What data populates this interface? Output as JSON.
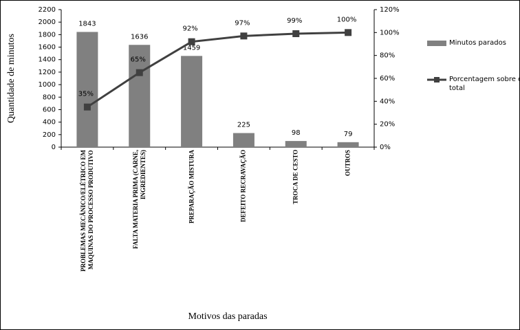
{
  "chart_data": {
    "type": "bar",
    "x_label": "Motivos das paradas",
    "y_label": "Quantidade de minutos",
    "categories": [
      "PROBLEMAS MECÂNICO/ELÉTRICO EM MAQUINAS DO PROCESSO PRODUTIVO",
      "FALTA MATERIA PRIMA (CARNE, INGREDIENTES)",
      "PREPARAÇÃO MISTURA",
      "DEFEITO RECRAVAÇÃO",
      "TROCA DE CESTO",
      "OUTROS"
    ],
    "series": [
      {
        "name": "Minutos parados",
        "type": "bar",
        "color": "#808080",
        "values": [
          1843,
          1636,
          1459,
          225,
          98,
          79
        ]
      },
      {
        "name": "Porcentagem sobre o total",
        "type": "line",
        "axis": "y2",
        "color": "#404040",
        "values": [
          35,
          65,
          92,
          97,
          99,
          100
        ],
        "value_labels": [
          "35%",
          "65%",
          "92%",
          "97%",
          "99%",
          "100%"
        ]
      }
    ],
    "ylim": [
      0,
      2200
    ],
    "yticks": [
      0,
      200,
      400,
      600,
      800,
      1000,
      1200,
      1400,
      1600,
      1800,
      2000,
      2200
    ],
    "y2lim": [
      0,
      120
    ],
    "y2ticks": [
      {
        "value": 0,
        "label": "0%"
      },
      {
        "value": 20,
        "label": "20%"
      },
      {
        "value": 40,
        "label": "40%"
      },
      {
        "value": 60,
        "label": "60%"
      },
      {
        "value": 80,
        "label": "80%"
      },
      {
        "value": 100,
        "label": "100%"
      },
      {
        "value": 120,
        "label": "120%"
      }
    ],
    "legend": "right"
  }
}
